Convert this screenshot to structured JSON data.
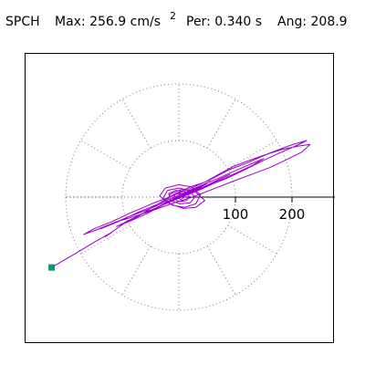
{
  "header": {
    "station": "SPCH",
    "max": "Max:  256.9 cm/s",
    "max_sup": "2",
    "period": "Per:  0.340 s",
    "angle": "Ang: 208.9"
  },
  "chart_data": {
    "type": "scatter",
    "subtype": "polar-particle-motion",
    "units": "cm/s^2",
    "ring_radii": [
      100,
      200
    ],
    "spoke_angles_deg": [
      0,
      30,
      60,
      90,
      120,
      150,
      180,
      210,
      240,
      270,
      300,
      330
    ],
    "tick_labels": [
      "100",
      "200"
    ],
    "axis_range": [
      -270,
      270
    ],
    "grid": "dotted",
    "trace_color": "#9900cc",
    "marker": {
      "x": -224.9,
      "y": -124.4,
      "color": "#00997a"
    },
    "trace": [
      [
        -224.9,
        -124.4
      ],
      [
        -180,
        -98
      ],
      [
        -150,
        -80
      ],
      [
        -118,
        -62
      ],
      [
        -130,
        -70
      ],
      [
        -96,
        -46
      ],
      [
        -72,
        -34
      ],
      [
        -40,
        -14
      ],
      [
        -10,
        4
      ],
      [
        20,
        18
      ],
      [
        45,
        26
      ],
      [
        70,
        40
      ],
      [
        96,
        54
      ],
      [
        120,
        63
      ],
      [
        150,
        74
      ],
      [
        182,
        84
      ],
      [
        210,
        90
      ],
      [
        232,
        93
      ],
      [
        218,
        80
      ],
      [
        190,
        66
      ],
      [
        160,
        52
      ],
      [
        128,
        40
      ],
      [
        96,
        28
      ],
      [
        60,
        14
      ],
      [
        24,
        0
      ],
      [
        -8,
        -10
      ],
      [
        -42,
        -22
      ],
      [
        -78,
        -34
      ],
      [
        -112,
        -44
      ],
      [
        -146,
        -58
      ],
      [
        -168,
        -66
      ],
      [
        -150,
        -56
      ],
      [
        -120,
        -44
      ],
      [
        -86,
        -28
      ],
      [
        -48,
        -12
      ],
      [
        -12,
        2
      ],
      [
        22,
        16
      ],
      [
        54,
        30
      ],
      [
        88,
        48
      ],
      [
        120,
        60
      ],
      [
        156,
        76
      ],
      [
        198,
        92
      ],
      [
        226,
        100
      ],
      [
        210,
        92
      ],
      [
        178,
        78
      ],
      [
        148,
        64
      ],
      [
        116,
        48
      ],
      [
        82,
        32
      ],
      [
        46,
        18
      ],
      [
        10,
        4
      ],
      [
        -26,
        -10
      ],
      [
        -60,
        -24
      ],
      [
        -92,
        -36
      ],
      [
        -124,
        -50
      ],
      [
        -138,
        -56
      ],
      [
        -104,
        -42
      ],
      [
        -70,
        -26
      ],
      [
        -36,
        -12
      ],
      [
        -4,
        2
      ],
      [
        28,
        16
      ],
      [
        62,
        30
      ],
      [
        94,
        44
      ],
      [
        126,
        58
      ],
      [
        150,
        68
      ],
      [
        130,
        56
      ],
      [
        100,
        42
      ],
      [
        70,
        28
      ],
      [
        40,
        14
      ],
      [
        10,
        2
      ],
      [
        -20,
        -10
      ],
      [
        -52,
        -24
      ],
      [
        -82,
        -38
      ],
      [
        -110,
        -52
      ],
      [
        -90,
        -44
      ],
      [
        -58,
        -30
      ],
      [
        -28,
        -14
      ],
      [
        4,
        0
      ],
      [
        36,
        14
      ],
      [
        66,
        28
      ],
      [
        90,
        40
      ],
      [
        72,
        32
      ],
      [
        44,
        18
      ],
      [
        16,
        6
      ],
      [
        -12,
        -6
      ],
      [
        -38,
        -18
      ],
      [
        -62,
        -28
      ],
      [
        -40,
        -20
      ],
      [
        -16,
        -8
      ],
      [
        10,
        4
      ],
      [
        34,
        16
      ],
      [
        56,
        28
      ],
      [
        40,
        20
      ],
      [
        18,
        10
      ],
      [
        -4,
        -2
      ],
      [
        -26,
        -12
      ],
      [
        -44,
        -22
      ],
      [
        -28,
        -14
      ],
      [
        -8,
        -2
      ],
      [
        14,
        8
      ],
      [
        34,
        18
      ],
      [
        50,
        24
      ],
      [
        36,
        16
      ],
      [
        14,
        6
      ],
      [
        -6,
        -4
      ],
      [
        -24,
        -12
      ],
      [
        -14,
        6
      ],
      [
        6,
        14
      ],
      [
        28,
        10
      ],
      [
        46,
        -6
      ],
      [
        30,
        -18
      ],
      [
        8,
        -20
      ],
      [
        -16,
        -12
      ],
      [
        -34,
        2
      ],
      [
        -24,
        16
      ],
      [
        0,
        22
      ],
      [
        22,
        18
      ],
      [
        38,
        4
      ],
      [
        30,
        -12
      ],
      [
        10,
        -18
      ],
      [
        -12,
        -14
      ],
      [
        -28,
        -2
      ],
      [
        -20,
        12
      ],
      [
        0,
        16
      ],
      [
        18,
        12
      ],
      [
        28,
        0
      ],
      [
        20,
        -10
      ],
      [
        2,
        -12
      ],
      [
        -14,
        -6
      ],
      [
        -18,
        6
      ],
      [
        -6,
        12
      ],
      [
        10,
        10
      ],
      [
        18,
        2
      ],
      [
        14,
        -6
      ],
      [
        0,
        -8
      ],
      [
        -10,
        -2
      ],
      [
        -6,
        6
      ],
      [
        6,
        6
      ],
      [
        10,
        0
      ],
      [
        4,
        -4
      ],
      [
        -2,
        -2
      ],
      [
        0,
        0
      ]
    ]
  }
}
